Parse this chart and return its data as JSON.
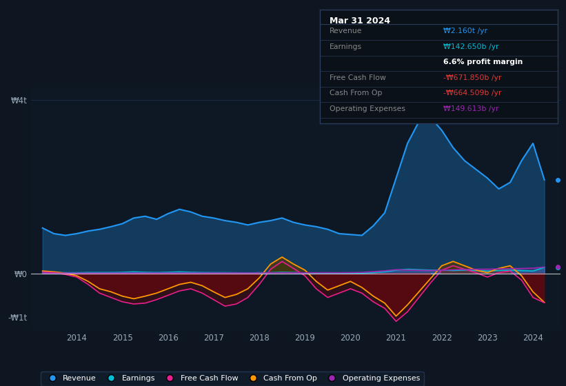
{
  "background_color": "#0e1621",
  "plot_bg_color": "#0e1824",
  "colors": {
    "revenue": "#2196f3",
    "earnings": "#00bcd4",
    "free_cash_flow": "#e91e8c",
    "cash_from_op": "#ff9800",
    "operating_expenses": "#9c27b0"
  },
  "legend_items": [
    {
      "label": "Revenue",
      "color": "#2196f3"
    },
    {
      "label": "Earnings",
      "color": "#00bcd4"
    },
    {
      "label": "Free Cash Flow",
      "color": "#e91e8c"
    },
    {
      "label": "Cash From Op",
      "color": "#ff9800"
    },
    {
      "label": "Operating Expenses",
      "color": "#9c27b0"
    }
  ],
  "revenue_x": [
    2013.25,
    2013.5,
    2013.75,
    2014.0,
    2014.25,
    2014.5,
    2014.75,
    2015.0,
    2015.25,
    2015.5,
    2015.75,
    2016.0,
    2016.25,
    2016.5,
    2016.75,
    2017.0,
    2017.25,
    2017.5,
    2017.75,
    2018.0,
    2018.25,
    2018.5,
    2018.75,
    2019.0,
    2019.25,
    2019.5,
    2019.75,
    2020.0,
    2020.25,
    2020.5,
    2020.75,
    2021.0,
    2021.25,
    2021.5,
    2021.75,
    2022.0,
    2022.25,
    2022.5,
    2022.75,
    2023.0,
    2023.25,
    2023.5,
    2023.75,
    2024.0,
    2024.25
  ],
  "revenue_y": [
    1.05,
    0.92,
    0.88,
    0.92,
    0.98,
    1.02,
    1.08,
    1.15,
    1.28,
    1.32,
    1.25,
    1.38,
    1.48,
    1.42,
    1.32,
    1.28,
    1.22,
    1.18,
    1.12,
    1.18,
    1.22,
    1.28,
    1.18,
    1.12,
    1.08,
    1.02,
    0.92,
    0.9,
    0.88,
    1.1,
    1.4,
    2.2,
    3.0,
    3.5,
    3.6,
    3.3,
    2.9,
    2.6,
    2.4,
    2.2,
    1.95,
    2.1,
    2.6,
    3.0,
    2.16
  ],
  "earnings_x": [
    2013.25,
    2013.5,
    2013.75,
    2014.0,
    2014.25,
    2014.5,
    2014.75,
    2015.0,
    2015.25,
    2015.5,
    2015.75,
    2016.0,
    2016.25,
    2016.5,
    2016.75,
    2017.0,
    2017.25,
    2017.5,
    2017.75,
    2018.0,
    2018.25,
    2018.5,
    2018.75,
    2019.0,
    2019.25,
    2019.5,
    2019.75,
    2020.0,
    2020.25,
    2020.5,
    2020.75,
    2021.0,
    2021.25,
    2021.5,
    2021.75,
    2022.0,
    2022.25,
    2022.5,
    2022.75,
    2023.0,
    2023.25,
    2023.5,
    2023.75,
    2024.0,
    2024.25
  ],
  "earnings_y": [
    0.03,
    0.025,
    0.02,
    0.02,
    0.025,
    0.025,
    0.025,
    0.03,
    0.04,
    0.03,
    0.025,
    0.03,
    0.04,
    0.03,
    0.025,
    0.022,
    0.022,
    0.018,
    0.015,
    0.02,
    0.022,
    0.03,
    0.025,
    0.015,
    0.012,
    0.01,
    0.008,
    0.008,
    0.01,
    0.02,
    0.04,
    0.08,
    0.1,
    0.09,
    0.08,
    0.08,
    0.07,
    0.08,
    0.07,
    0.06,
    0.07,
    0.08,
    0.07,
    0.06,
    0.143
  ],
  "fcf_x": [
    2013.25,
    2013.5,
    2013.75,
    2014.0,
    2014.25,
    2014.5,
    2014.75,
    2015.0,
    2015.25,
    2015.5,
    2015.75,
    2016.0,
    2016.25,
    2016.5,
    2016.75,
    2017.0,
    2017.25,
    2017.5,
    2017.75,
    2018.0,
    2018.25,
    2018.5,
    2018.75,
    2019.0,
    2019.25,
    2019.5,
    2019.75,
    2020.0,
    2020.25,
    2020.5,
    2020.75,
    2021.0,
    2021.25,
    2021.5,
    2021.75,
    2022.0,
    2022.25,
    2022.5,
    2022.75,
    2023.0,
    2023.25,
    2023.5,
    2023.75,
    2024.0,
    2024.25
  ],
  "fcf_y": [
    0.04,
    0.02,
    -0.02,
    -0.08,
    -0.25,
    -0.45,
    -0.55,
    -0.65,
    -0.7,
    -0.68,
    -0.6,
    -0.5,
    -0.4,
    -0.35,
    -0.45,
    -0.6,
    -0.75,
    -0.7,
    -0.55,
    -0.25,
    0.1,
    0.28,
    0.12,
    -0.05,
    -0.35,
    -0.55,
    -0.45,
    -0.35,
    -0.45,
    -0.65,
    -0.8,
    -1.1,
    -0.88,
    -0.55,
    -0.22,
    0.08,
    0.18,
    0.1,
    0.02,
    -0.08,
    0.02,
    0.06,
    -0.15,
    -0.55,
    -0.672
  ],
  "cfo_x": [
    2013.25,
    2013.5,
    2013.75,
    2014.0,
    2014.25,
    2014.5,
    2014.75,
    2015.0,
    2015.25,
    2015.5,
    2015.75,
    2016.0,
    2016.25,
    2016.5,
    2016.75,
    2017.0,
    2017.25,
    2017.5,
    2017.75,
    2018.0,
    2018.25,
    2018.5,
    2018.75,
    2019.0,
    2019.25,
    2019.5,
    2019.75,
    2020.0,
    2020.25,
    2020.5,
    2020.75,
    2021.0,
    2021.25,
    2021.5,
    2021.75,
    2022.0,
    2022.25,
    2022.5,
    2022.75,
    2023.0,
    2023.25,
    2023.5,
    2023.75,
    2024.0,
    2024.25
  ],
  "cfo_y": [
    0.06,
    0.04,
    0.01,
    -0.05,
    -0.18,
    -0.35,
    -0.42,
    -0.52,
    -0.58,
    -0.52,
    -0.45,
    -0.35,
    -0.25,
    -0.2,
    -0.28,
    -0.42,
    -0.55,
    -0.48,
    -0.35,
    -0.1,
    0.22,
    0.38,
    0.22,
    0.08,
    -0.18,
    -0.38,
    -0.28,
    -0.18,
    -0.32,
    -0.52,
    -0.68,
    -0.98,
    -0.72,
    -0.42,
    -0.12,
    0.18,
    0.28,
    0.18,
    0.08,
    0.02,
    0.12,
    0.18,
    -0.05,
    -0.42,
    -0.665
  ],
  "opex_x": [
    2013.25,
    2013.5,
    2013.75,
    2014.0,
    2014.25,
    2014.5,
    2014.75,
    2015.0,
    2015.25,
    2015.5,
    2015.75,
    2016.0,
    2016.25,
    2016.5,
    2016.75,
    2017.0,
    2017.25,
    2017.5,
    2017.75,
    2018.0,
    2018.25,
    2018.5,
    2018.75,
    2019.0,
    2019.25,
    2019.5,
    2019.75,
    2020.0,
    2020.25,
    2020.5,
    2020.75,
    2021.0,
    2021.25,
    2021.5,
    2021.75,
    2022.0,
    2022.25,
    2022.5,
    2022.75,
    2023.0,
    2023.25,
    2023.5,
    2023.75,
    2024.0,
    2024.25
  ],
  "opex_y": [
    0.01,
    0.01,
    0.01,
    0.01,
    0.01,
    0.01,
    0.01,
    0.012,
    0.012,
    0.012,
    0.012,
    0.012,
    0.012,
    0.012,
    0.012,
    0.012,
    0.013,
    0.013,
    0.013,
    0.013,
    0.015,
    0.018,
    0.018,
    0.018,
    0.02,
    0.02,
    0.02,
    0.022,
    0.028,
    0.045,
    0.065,
    0.09,
    0.082,
    0.075,
    0.07,
    0.078,
    0.088,
    0.098,
    0.1,
    0.102,
    0.108,
    0.115,
    0.118,
    0.125,
    0.15
  ],
  "xlim": [
    2013.0,
    2024.6
  ],
  "ylim_t": 4.3,
  "ylim_b": -1.3,
  "yticks": [
    4.0,
    0.0,
    -1.0
  ],
  "ytick_labels": [
    "₩4t",
    "₩0",
    "-₩1t"
  ],
  "xticks": [
    2014,
    2015,
    2016,
    2017,
    2018,
    2019,
    2020,
    2021,
    2022,
    2023,
    2024
  ],
  "scale": 1000000000000.0,
  "infobox_title": "Mar 31 2024",
  "infobox_rows": [
    {
      "label": "Revenue",
      "value": "₩2.160t /yr",
      "label_color": "#888888",
      "value_color": "#2196f3"
    },
    {
      "label": "Earnings",
      "value": "₩142.650b /yr",
      "label_color": "#888888",
      "value_color": "#00bcd4"
    },
    {
      "label": "",
      "value": "6.6% profit margin",
      "label_color": "#888888",
      "value_color": "#ffffff"
    },
    {
      "label": "Free Cash Flow",
      "value": "-₩671.850b /yr",
      "label_color": "#888888",
      "value_color": "#e53935"
    },
    {
      "label": "Cash From Op",
      "value": "-₩664.509b /yr",
      "label_color": "#888888",
      "value_color": "#e53935"
    },
    {
      "label": "Operating Expenses",
      "value": "₩149.613b /yr",
      "label_color": "#888888",
      "value_color": "#9c27b0"
    }
  ]
}
